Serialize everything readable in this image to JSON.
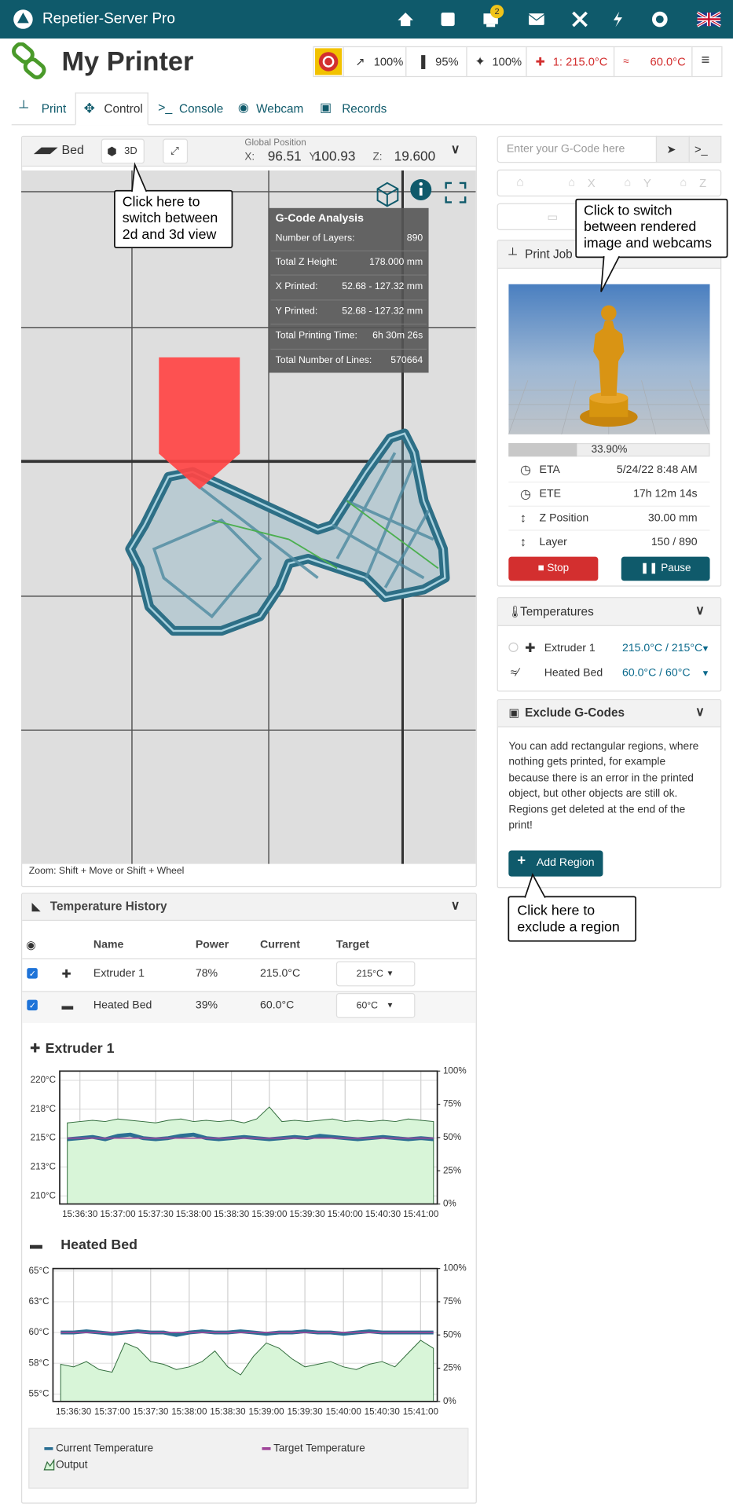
{
  "header": {
    "app_name": "Repetier-Server Pro",
    "notification_count": 2
  },
  "printer": {
    "name": "My Printer",
    "speed": "100%",
    "flow": "95%",
    "fan": "100%",
    "extruder_temp": "1: 215.0°C",
    "bed_temp": "60.0°C"
  },
  "tabs": [
    "Print",
    "Control",
    "Console",
    "Webcam",
    "Records"
  ],
  "bed_panel": {
    "title": "Bed",
    "view_toggle": "3D",
    "position_label": "Global Position",
    "x_label": "X:",
    "x": "96.51",
    "y_label": "Y:",
    "y": "100.93",
    "z_label": "Z:",
    "z": "19.600",
    "zoom_hint": "Zoom: Shift + Move or Shift + Wheel"
  },
  "gcode_analysis": {
    "title": "G-Code Analysis",
    "rows": [
      [
        "Number of Layers:",
        "890"
      ],
      [
        "Total Z Height:",
        "178.000 mm"
      ],
      [
        "X Printed:",
        "52.68 - 127.32 mm"
      ],
      [
        "Y Printed:",
        "52.68 - 127.32 mm"
      ],
      [
        "Total Printing Time:",
        "6h 30m 26s"
      ],
      [
        "Total Number of Lines:",
        "570664"
      ]
    ]
  },
  "callouts": [
    "Click here to switch between 2d and 3d view",
    "Click to switch between rendered image and webcams",
    "Click here to exclude a region"
  ],
  "gcode_input": {
    "placeholder": "Enter your G-Code here"
  },
  "home_buttons": [
    "X",
    "Y",
    "Z"
  ],
  "print_job": {
    "title": "Print Job",
    "progress": {
      "value": 33.9,
      "label": "33.90%"
    },
    "rows": [
      [
        "ETA",
        "5/24/22 8:48 AM"
      ],
      [
        "ETE",
        "17h 12m 14s"
      ],
      [
        "Z Position",
        "30.00 mm"
      ],
      [
        "Layer",
        "150 / 890"
      ]
    ],
    "stop": "Stop",
    "pause": "Pause"
  },
  "temperatures": {
    "title": "Temperatures",
    "rows": [
      [
        "Extruder 1",
        "215.0°C / 215°C"
      ],
      [
        "Heated Bed",
        "60.0°C / 60°C"
      ]
    ]
  },
  "exclude": {
    "title": "Exclude G-Codes",
    "text": "You can add rectangular regions, where nothing gets printed, for example because there is an error in the printed object, but other objects are still ok. Regions get deleted at the end of the print!",
    "button": "Add Region"
  },
  "temperature_history": {
    "title": "Temperature History",
    "columns": [
      "Name",
      "Power",
      "Current",
      "Target"
    ],
    "rows": [
      [
        "Extruder 1",
        "78%",
        "215.0°C",
        "215°C"
      ],
      [
        "Heated Bed",
        "39%",
        "60.0°C",
        "60°C"
      ]
    ]
  },
  "chart_data": [
    {
      "type": "line",
      "title": "Extruder 1",
      "x": [
        "15:36:20",
        "15:36:30",
        "15:36:40",
        "15:36:50",
        "15:37:00",
        "15:37:10",
        "15:37:20",
        "15:37:30",
        "15:37:40",
        "15:37:50",
        "15:38:00",
        "15:38:10",
        "15:38:20",
        "15:38:30",
        "15:38:40",
        "15:38:50",
        "15:39:00",
        "15:39:10",
        "15:39:20",
        "15:39:30",
        "15:39:40",
        "15:39:50",
        "15:40:00",
        "15:40:10",
        "15:40:20",
        "15:40:30",
        "15:40:40",
        "15:40:50",
        "15:41:00",
        "15:41:10"
      ],
      "xlim": [
        "15:36:14",
        "15:41:13"
      ],
      "xticks": [
        "15:36:30",
        "15:37:00",
        "15:37:30",
        "15:38:00",
        "15:38:30",
        "15:39:00",
        "15:39:30",
        "15:40:00",
        "15:40:30",
        "15:41:00"
      ],
      "ylim": [
        209.3,
        220.8
      ],
      "yticks": [
        {
          "value": 210,
          "label": "210°C"
        },
        {
          "value": 212.5,
          "label": "213°C"
        },
        {
          "value": 215,
          "label": "215°C"
        },
        {
          "value": 217.5,
          "label": "218°C"
        },
        {
          "value": 220,
          "label": "220°C"
        }
      ],
      "y2lim": [
        0,
        100
      ],
      "y2ticks": [
        {
          "value": 0,
          "label": "0%"
        },
        {
          "value": 25,
          "label": "25%"
        },
        {
          "value": 50,
          "label": "50%"
        },
        {
          "value": 75,
          "label": "75%"
        },
        {
          "value": 100,
          "label": "100%"
        }
      ],
      "grid": true,
      "series": [
        {
          "color": "#2b6f93",
          "values": [
            214.9,
            215.0,
            215.1,
            214.9,
            215.2,
            215.3,
            215.0,
            214.9,
            215.0,
            215.2,
            215.3,
            215.0,
            214.9,
            215.0,
            215.1,
            215.0,
            214.9,
            215.0,
            215.1,
            215.0,
            215.2,
            215.1,
            215.0,
            214.9,
            215.0,
            215.1,
            215.0,
            214.9,
            215.0,
            214.9
          ]
        },
        {
          "color": "#a0469a",
          "values": [
            215,
            215,
            215,
            215,
            215,
            215,
            215,
            215,
            215,
            215,
            215,
            215,
            215,
            215,
            215,
            215,
            215,
            215,
            215,
            215,
            215,
            215,
            215,
            215,
            215,
            215,
            215,
            215,
            215,
            215
          ]
        },
        {
          "color": "#2f6b3a",
          "axis": "y2",
          "values": [
            61,
            62,
            63,
            62,
            64,
            63,
            62,
            61,
            63,
            64,
            62,
            63,
            62,
            63,
            61,
            64,
            73,
            62,
            63,
            62,
            63,
            64,
            62,
            63,
            62,
            63,
            62,
            64,
            63,
            62
          ]
        }
      ]
    },
    {
      "type": "line",
      "title": "Heated Bed",
      "x": [
        "15:36:20",
        "15:36:30",
        "15:36:40",
        "15:36:50",
        "15:37:00",
        "15:37:10",
        "15:37:20",
        "15:37:30",
        "15:37:40",
        "15:37:50",
        "15:38:00",
        "15:38:10",
        "15:38:20",
        "15:38:30",
        "15:38:40",
        "15:38:50",
        "15:39:00",
        "15:39:10",
        "15:39:20",
        "15:39:30",
        "15:39:40",
        "15:39:50",
        "15:40:00",
        "15:40:10",
        "15:40:20",
        "15:40:30",
        "15:40:40",
        "15:40:50",
        "15:41:00",
        "15:41:10"
      ],
      "xlim": [
        "15:36:14",
        "15:41:13"
      ],
      "xticks": [
        "15:36:30",
        "15:37:00",
        "15:37:30",
        "15:38:00",
        "15:38:30",
        "15:39:00",
        "15:39:30",
        "15:40:00",
        "15:40:30",
        "15:41:00"
      ],
      "ylim": [
        54.4,
        65.2
      ],
      "yticks": [
        {
          "value": 55,
          "label": "55°C"
        },
        {
          "value": 57.5,
          "label": "58°C"
        },
        {
          "value": 60,
          "label": "60°C"
        },
        {
          "value": 62.5,
          "label": "63°C"
        },
        {
          "value": 65,
          "label": "65°C"
        }
      ],
      "y2lim": [
        0,
        100
      ],
      "y2ticks": [
        {
          "value": 0,
          "label": "0%"
        },
        {
          "value": 25,
          "label": "25%"
        },
        {
          "value": 50,
          "label": "50%"
        },
        {
          "value": 75,
          "label": "75%"
        },
        {
          "value": 100,
          "label": "100%"
        }
      ],
      "grid": true,
      "legend": "bottom",
      "series": [
        {
          "name": "Current Temperature",
          "color": "#2b6f93",
          "values": [
            60.0,
            60.0,
            60.1,
            60.0,
            59.9,
            60.0,
            60.1,
            60.0,
            60.0,
            59.8,
            60.0,
            60.1,
            60.0,
            60.0,
            60.1,
            60.0,
            59.9,
            60.0,
            60.0,
            60.1,
            60.0,
            60.0,
            59.9,
            60.0,
            60.1,
            60.0,
            60.0,
            60.0,
            60.0,
            60.0
          ]
        },
        {
          "name": "Target Temperature",
          "color": "#a0469a",
          "values": [
            60,
            60,
            60,
            60,
            60,
            60,
            60,
            60,
            60,
            60,
            60,
            60,
            60,
            60,
            60,
            60,
            60,
            60,
            60,
            60,
            60,
            60,
            60,
            60,
            60,
            60,
            60,
            60,
            60,
            60
          ]
        },
        {
          "name": "Output",
          "color": "#2f6b3a",
          "axis": "y2",
          "values": [
            28,
            26,
            30,
            24,
            22,
            44,
            40,
            30,
            28,
            24,
            26,
            30,
            38,
            26,
            20,
            34,
            44,
            40,
            32,
            26,
            28,
            30,
            26,
            24,
            28,
            30,
            26,
            36,
            46,
            40
          ]
        }
      ]
    }
  ]
}
